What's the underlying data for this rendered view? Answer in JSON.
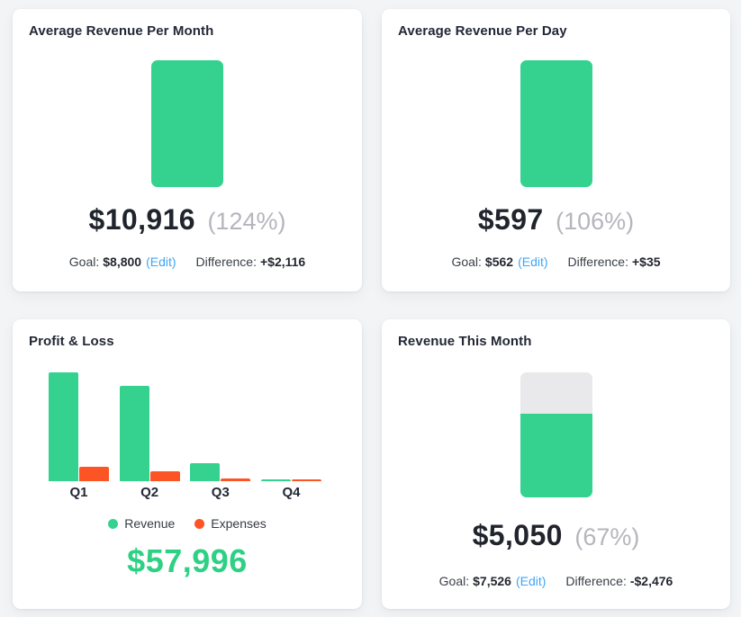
{
  "page": {
    "background": "#f3f4f6",
    "card_background": "#ffffff"
  },
  "colors": {
    "revenue_green": "#35d28f",
    "expenses_orange": "#fd5426",
    "positive_diff_green": "#27c281",
    "negative_diff_red": "#fb4a33",
    "edit_link_blue": "#41a6f6",
    "percent_gray": "#b5b5bd",
    "gauge_track_gray": "#e9e9eb",
    "dark_text": "#222835",
    "total_green": "#2ed184"
  },
  "cards": {
    "avg_revenue_month": {
      "title": "Average Revenue Per Month",
      "value": "$10,916",
      "percent": "(124%)",
      "goal_label": "Goal:",
      "goal_value": "$8,800",
      "edit_label": "(Edit)",
      "diff_label": "Difference:",
      "diff_value": "+$2,116",
      "diff_direction": "positive",
      "gauge_fill_pct": 100
    },
    "avg_revenue_day": {
      "title": "Average Revenue Per Day",
      "value": "$597",
      "percent": "(106%)",
      "goal_label": "Goal:",
      "goal_value": "$562",
      "edit_label": "(Edit)",
      "diff_label": "Difference:",
      "diff_value": "+$35",
      "diff_direction": "positive",
      "gauge_fill_pct": 100
    },
    "profit_loss": {
      "title": "Profit & Loss",
      "total": "$57,996",
      "legend": [
        {
          "label": "Revenue",
          "color": "#35d28f"
        },
        {
          "label": "Expenses",
          "color": "#fd5426"
        }
      ]
    },
    "revenue_this_month": {
      "title": "Revenue This Month",
      "value": "$5,050",
      "percent": "(67%)",
      "goal_label": "Goal:",
      "goal_value": "$7,526",
      "edit_label": "(Edit)",
      "diff_label": "Difference:",
      "diff_value": "-$2,476",
      "diff_direction": "negative",
      "gauge_fill_pct": 67
    }
  },
  "chart_data": {
    "type": "bar",
    "title": "Profit & Loss",
    "categories": [
      "Q1",
      "Q2",
      "Q3",
      "Q4"
    ],
    "series": [
      {
        "name": "Revenue",
        "color": "#35d28f",
        "values": [
          121,
          106,
          20,
          2
        ]
      },
      {
        "name": "Expenses",
        "color": "#fd5426",
        "values": [
          16,
          11,
          3,
          2
        ]
      }
    ],
    "value_unit": "estimated relative heights (axis unlabeled in source)",
    "grid": false,
    "legend_position": "bottom",
    "total_label": "$57,996"
  }
}
